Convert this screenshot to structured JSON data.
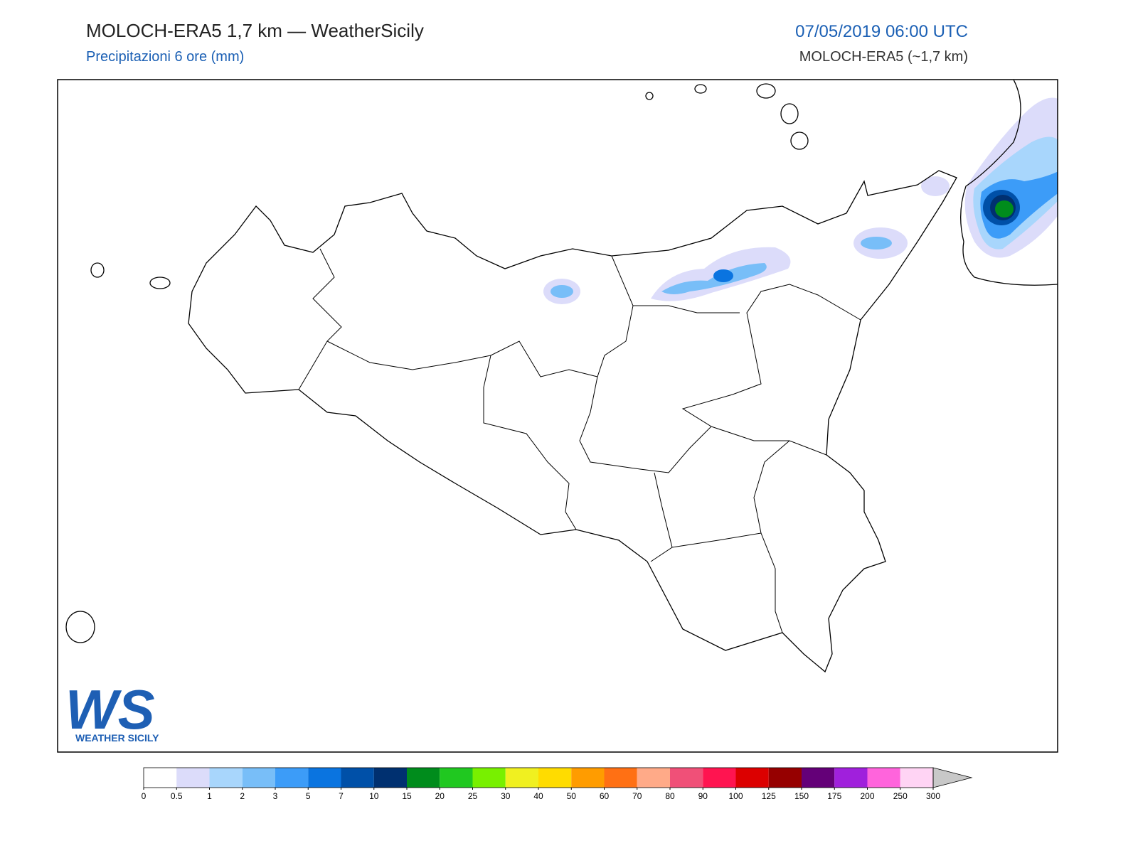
{
  "header": {
    "title": "MOLOCH-ERA5 1,7 km — WeatherSicily",
    "subtitle": "Precipitazioni 6 ore (mm)",
    "valid_time": "07/05/2019 06:00 UTC",
    "model": "MOLOCH-ERA5 (~1,7 km)"
  },
  "logo": {
    "mark": "WS",
    "name": "WEATHER SICILY"
  },
  "colorbar": {
    "bounds": [
      0,
      0.5,
      1,
      2,
      3,
      5,
      7,
      10,
      15,
      20,
      25,
      30,
      40,
      50,
      60,
      70,
      80,
      90,
      100,
      125,
      150,
      175,
      200,
      250,
      300
    ],
    "colors": [
      "#ffffff",
      "#dcdcfa",
      "#a8d6fc",
      "#78bef8",
      "#3c9cf8",
      "#0a74e0",
      "#0050a8",
      "#003070",
      "#008c1c",
      "#20c820",
      "#78f000",
      "#f0f020",
      "#ffdc00",
      "#ff9c00",
      "#ff7014",
      "#ffaa88",
      "#f05078",
      "#ff1450",
      "#dc0000",
      "#960000",
      "#640078",
      "#a020dc",
      "#ff64dc",
      "#ffd4f4"
    ],
    "extend_color": "#c8c8c8"
  }
}
